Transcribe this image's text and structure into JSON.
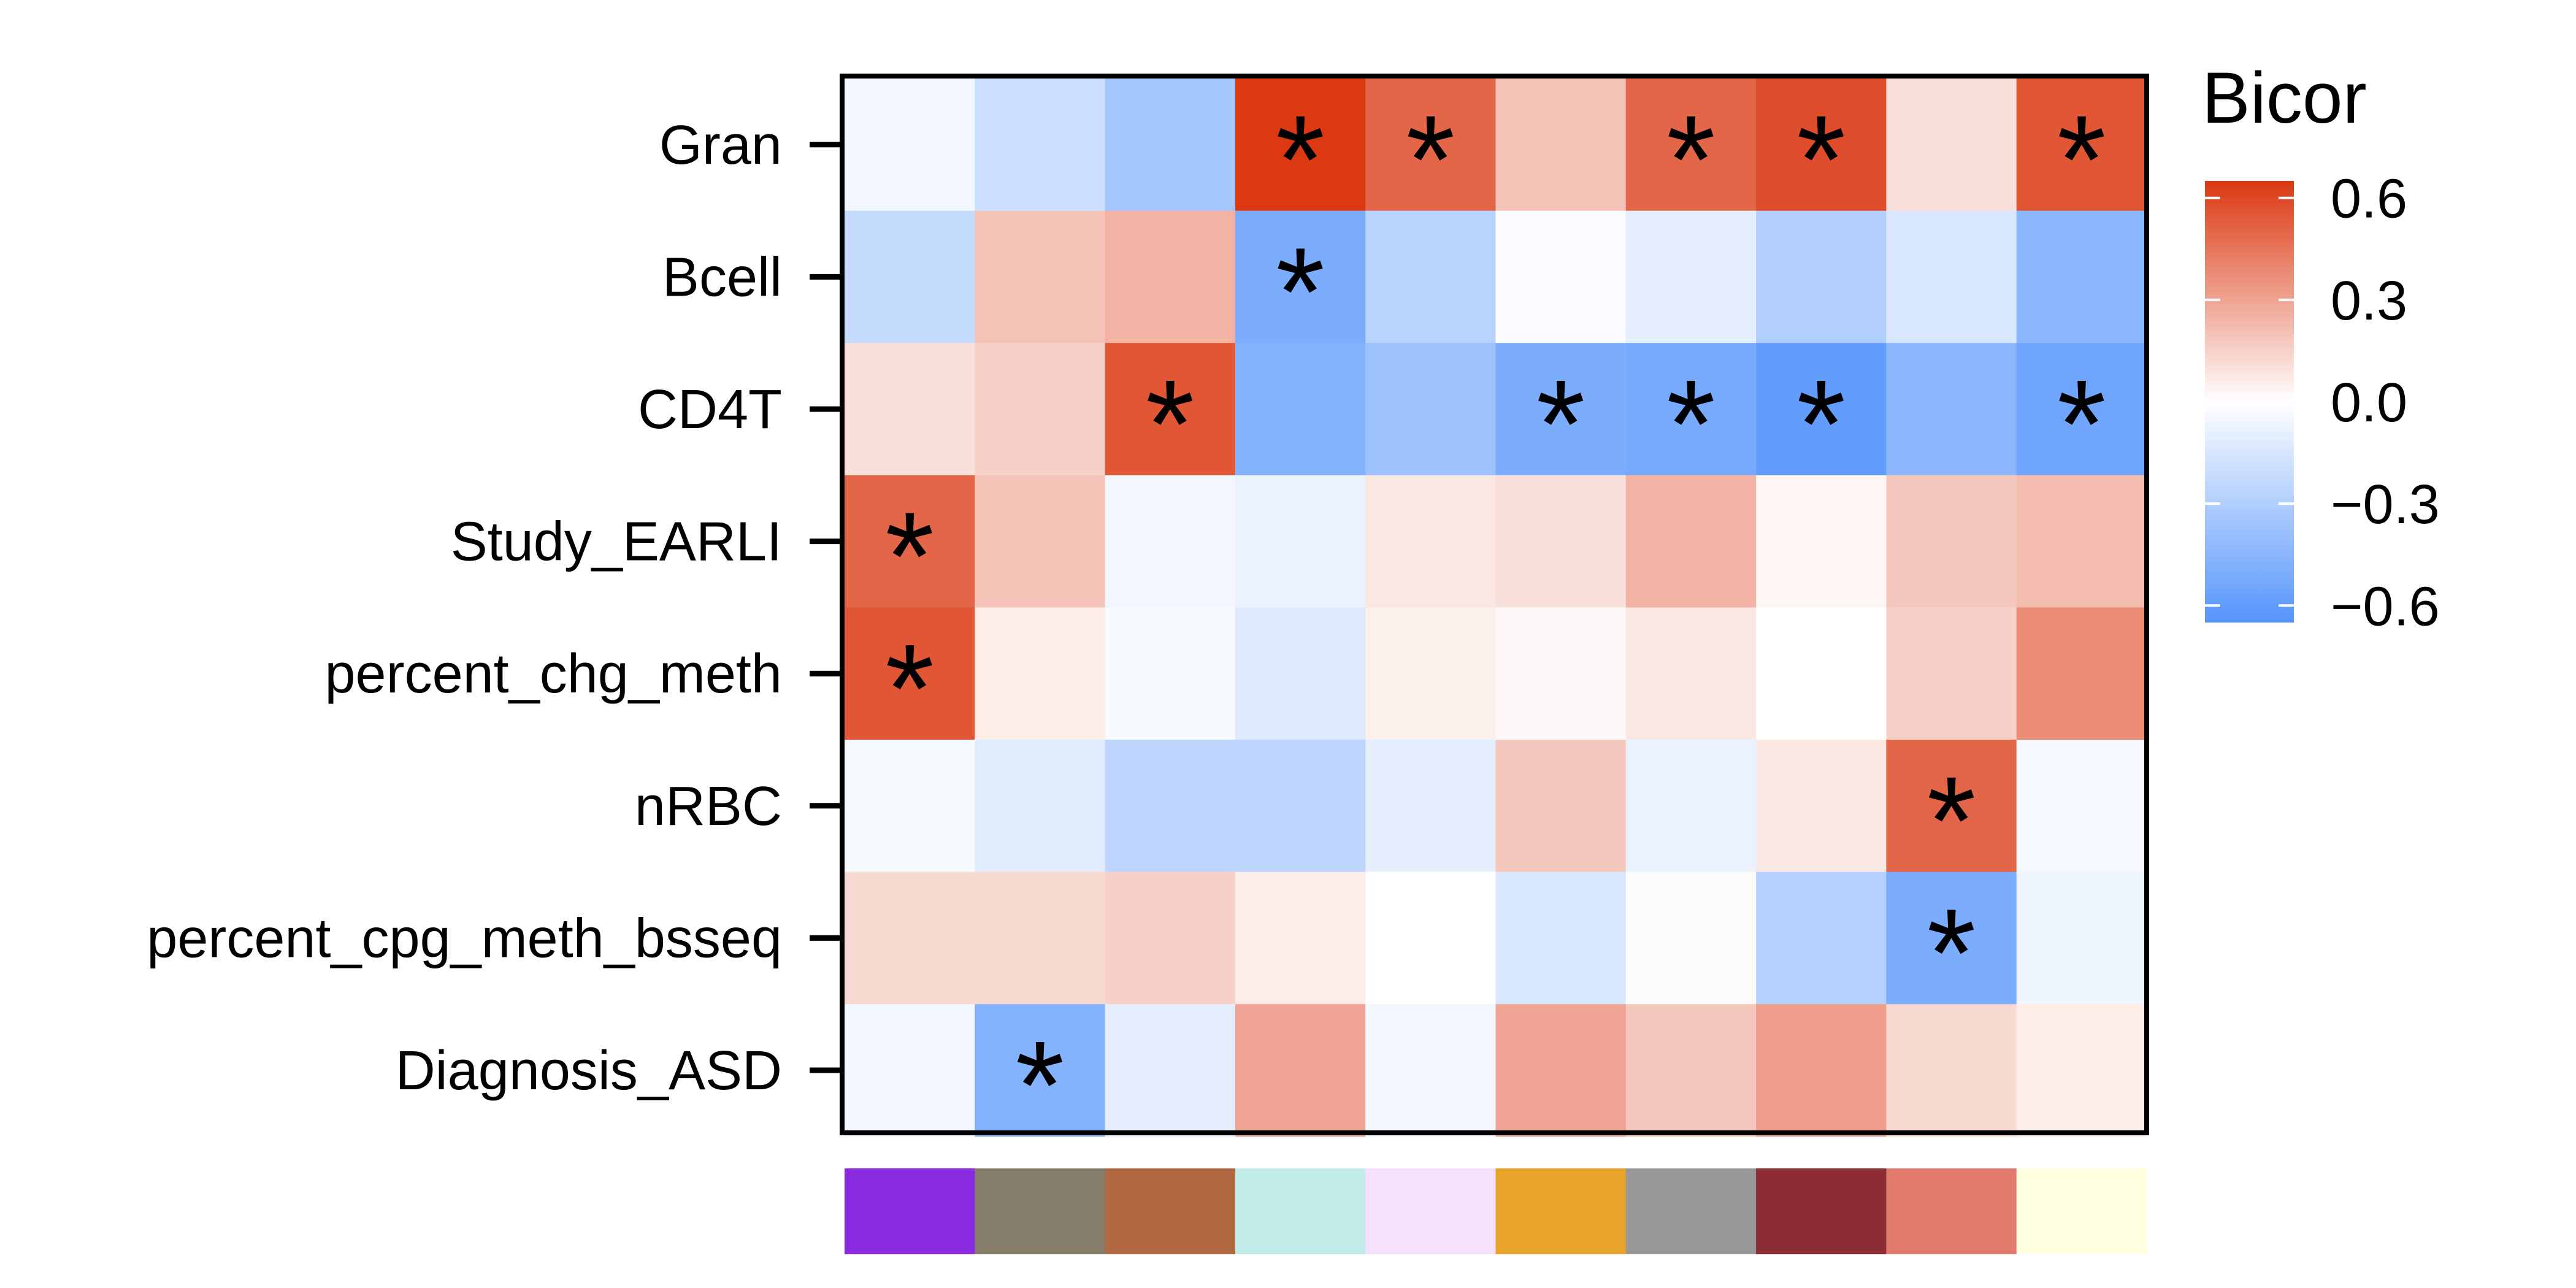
{
  "chart_data": {
    "type": "heatmap",
    "rows": [
      "Gran",
      "Bcell",
      "CD4T",
      "Study_EARLI",
      "percent_chg_meth",
      "nRBC",
      "percent_cpg_meth_bsseq",
      "Diagnosis_ASD"
    ],
    "module_colors": [
      "#8a2be2",
      "#857c6a",
      "#b06941",
      "#c2ece9",
      "#f5e1fb",
      "#e8a42a",
      "#989898",
      "#8b2d32",
      "#e07b6d",
      "#ffffe0"
    ],
    "values": [
      [
        -0.05,
        -0.2,
        -0.35,
        0.65,
        0.5,
        0.2,
        0.5,
        0.58,
        0.1,
        0.55
      ],
      [
        -0.22,
        0.2,
        0.25,
        -0.5,
        -0.27,
        -0.02,
        -0.1,
        -0.3,
        -0.15,
        -0.45
      ],
      [
        0.1,
        0.15,
        0.55,
        -0.47,
        -0.38,
        -0.5,
        -0.52,
        -0.6,
        -0.45,
        -0.55
      ],
      [
        0.5,
        0.2,
        -0.05,
        -0.08,
        0.08,
        0.1,
        0.25,
        0.03,
        0.18,
        0.22
      ],
      [
        0.55,
        0.06,
        -0.03,
        -0.13,
        0.05,
        0.02,
        0.08,
        0.0,
        0.15,
        0.38
      ],
      [
        -0.03,
        -0.12,
        -0.25,
        -0.25,
        -0.1,
        0.18,
        -0.08,
        0.08,
        0.5,
        -0.04
      ],
      [
        0.12,
        0.12,
        0.15,
        0.06,
        0.0,
        -0.15,
        0.01,
        -0.28,
        -0.5,
        -0.06
      ],
      [
        -0.05,
        -0.47,
        -0.1,
        0.3,
        -0.05,
        0.3,
        0.18,
        0.32,
        0.12,
        0.06
      ]
    ],
    "significant": [
      [
        3,
        4,
        6,
        7,
        9
      ],
      [
        3
      ],
      [
        2,
        5,
        6,
        7,
        9
      ],
      [
        0
      ],
      [
        0
      ],
      [
        8
      ],
      [
        8
      ],
      [
        1
      ]
    ],
    "marker": "*",
    "legend": {
      "title": "Bicor",
      "ticks": [
        0.6,
        0.3,
        0.0,
        -0.3,
        -0.6
      ],
      "tick_labels": [
        "0.6",
        "0.3",
        "0.0",
        "−0.3",
        "−0.6"
      ],
      "range": [
        -0.65,
        0.65
      ],
      "position": "right"
    },
    "colors": {
      "high": "#dc3812",
      "mid": "#ffffff",
      "low": "#5595fb"
    }
  }
}
